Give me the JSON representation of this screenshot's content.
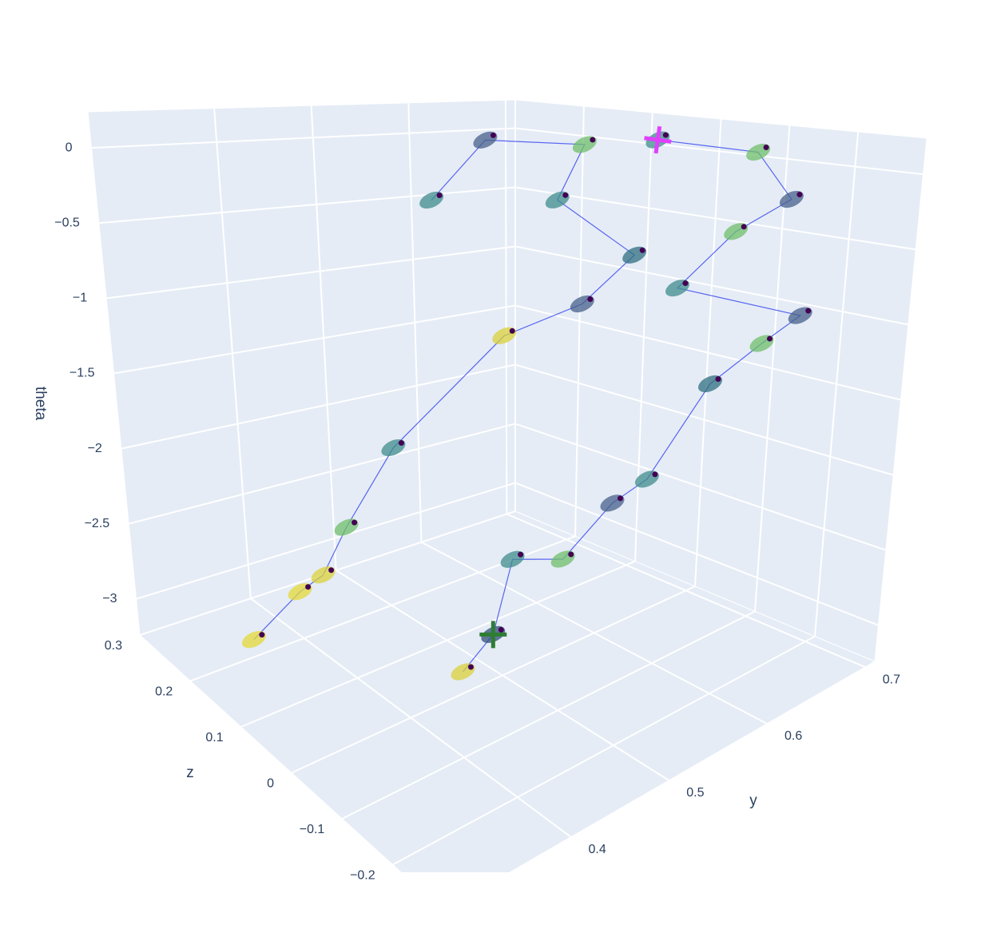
{
  "chart_data": {
    "type": "scatter3d",
    "xaxis_title": "y",
    "yaxis_title": "z",
    "zaxis_title": "theta",
    "ylim": [
      0.27,
      0.71
    ],
    "zlim": [
      -0.3,
      0.3
    ],
    "thetalim": [
      -3.24,
      0.24
    ],
    "yticks": [
      0.4,
      0.5,
      0.6,
      0.7
    ],
    "zticks": [
      {
        "value": -0.2,
        "label": "−0.2"
      },
      {
        "value": -0.1,
        "label": "−0.1"
      },
      0,
      0.1,
      0.2,
      0.3
    ],
    "thetaticks": [
      {
        "value": -3,
        "label": "−3"
      },
      {
        "value": -2.5,
        "label": "−2.5"
      },
      {
        "value": -2,
        "label": "−2"
      },
      {
        "value": -1.5,
        "label": "−1.5"
      },
      {
        "value": -1,
        "label": "−1"
      },
      {
        "value": -0.5,
        "label": "−0.5"
      },
      0
    ],
    "grid": true,
    "line_color": "#3344ee",
    "series": [
      {
        "y": [
          0.422,
          0.454,
          0.474,
          0.49,
          0.577,
          0.574,
          0.634,
          0.684,
          0.681,
          0.675,
          0.651,
          0.664,
          0.668,
          0.649
        ],
        "z": [
          -0.06,
          -0.06,
          -0.06,
          -0.12,
          -0.06,
          -0.12,
          -0.12,
          -0.12,
          -0.18,
          0,
          -0.12,
          -0.18,
          -0.12,
          0
        ],
        "theta": [
          -2.83,
          -2.67,
          -2.21,
          -2.12,
          -2.12,
          -1.83,
          -1.35,
          -1.22,
          -0.95,
          -0.93,
          -0.33,
          -0.09,
          0.18,
          0.22
        ],
        "colors": [
          "#d9d23a",
          "#2f4f7a",
          "#3f8c8c",
          "#6fbf6a",
          "#45608a",
          "#3f8c8c",
          "#2f6f7f",
          "#6fbf6a",
          "#45608a",
          "#3f8c8c",
          "#6fbf6a",
          "#45608a",
          "#6fbf6a",
          "#3f8c8c"
        ]
      },
      {
        "y": [
          0.333,
          0.387,
          0.379,
          0.406,
          0.423,
          0.501,
          0.579,
          0.67,
          0.591,
          0.617,
          0.558,
          0.542
        ],
        "z": [
          0.18,
          0.18,
          0.12,
          0.12,
          0.06,
          0,
          0,
          0.06,
          0.06,
          0.06,
          0.12,
          0.18
        ],
        "theta": [
          -3.04,
          -2.83,
          -2.53,
          -2.26,
          -1.59,
          -0.85,
          -0.81,
          -0.74,
          -0.17,
          0.19,
          0.24,
          -0.28
        ],
        "colors": [
          "#e3d93a",
          "#e3d93a",
          "#d9d23a",
          "#6fbf6a",
          "#3f8c8c",
          "#d9d23a",
          "#45608a",
          "#2f6f7f",
          "#3f8c8c",
          "#6fbf6a",
          "#45608a",
          "#3f8c8c"
        ]
      }
    ],
    "start": {
      "y": 0.454,
      "z": -0.06,
      "theta": -2.67,
      "color": "#2e7d32"
    },
    "end": {
      "y": 0.649,
      "z": 0,
      "theta": 0.22,
      "color": "#e040fb"
    }
  }
}
